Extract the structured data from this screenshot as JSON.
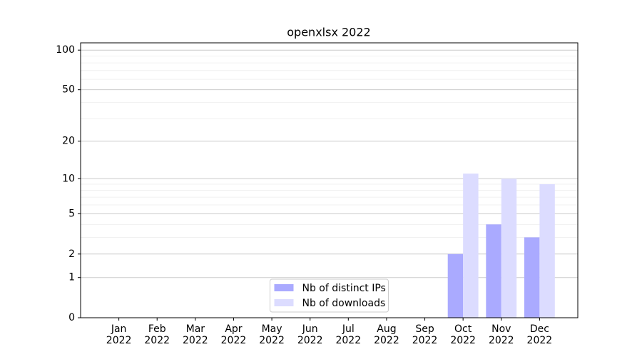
{
  "chart_data": {
    "type": "bar",
    "title": "openxlsx 2022",
    "categories": [
      "Jan\n2022",
      "Feb\n2022",
      "Mar\n2022",
      "Apr\n2022",
      "May\n2022",
      "Jun\n2022",
      "Jul\n2022",
      "Aug\n2022",
      "Sep\n2022",
      "Oct\n2022",
      "Nov\n2022",
      "Dec\n2022"
    ],
    "series": [
      {
        "name": "Nb of distinct IPs",
        "color": "#aaaaff",
        "values": [
          0,
          0,
          0,
          0,
          0,
          0,
          0,
          0,
          0,
          2,
          4,
          3
        ]
      },
      {
        "name": "Nb of downloads",
        "color": "#dcdcff",
        "values": [
          0,
          0,
          0,
          0,
          0,
          0,
          0,
          0,
          0,
          11,
          10,
          9
        ]
      }
    ],
    "yscale": "log1p",
    "ylim": [
      0,
      113.5
    ],
    "yticks": [
      0,
      1,
      2,
      5,
      10,
      20,
      50,
      100
    ],
    "yminorticks": [
      3,
      4,
      6,
      7,
      8,
      9,
      30,
      40,
      60,
      70,
      80,
      90
    ],
    "grid": true,
    "legend": "lower center"
  }
}
